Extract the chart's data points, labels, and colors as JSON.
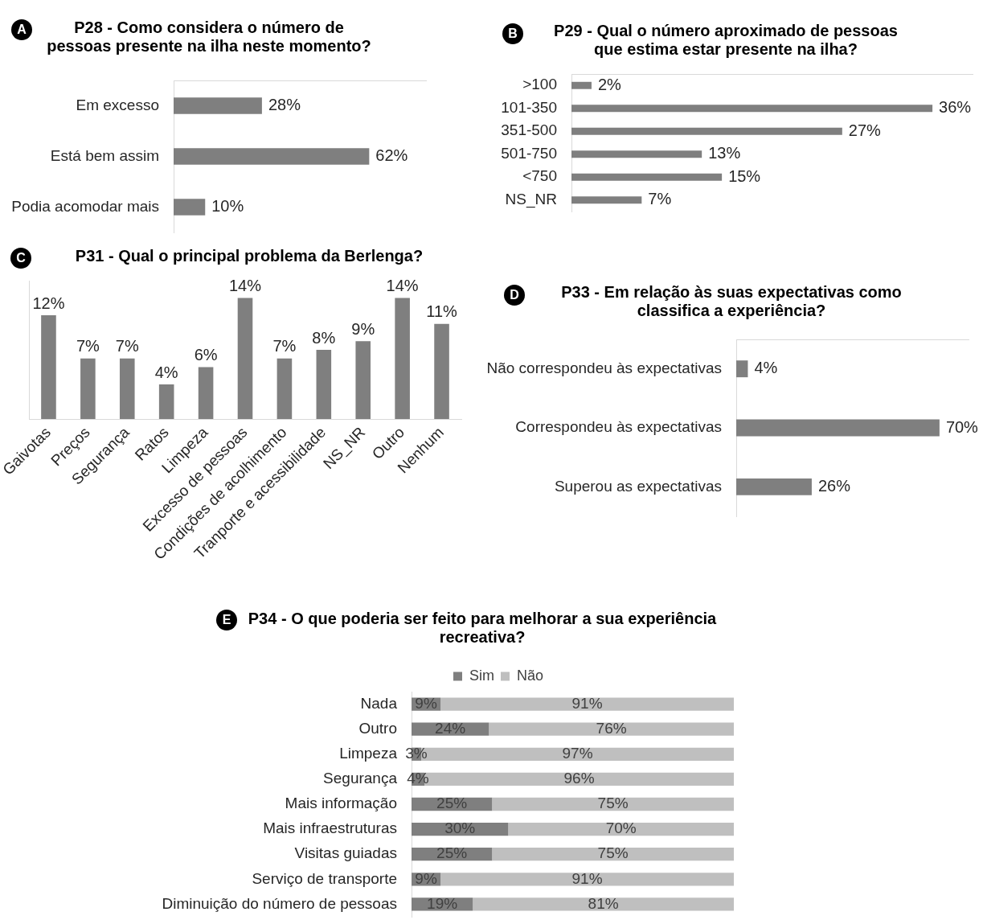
{
  "chart_data": [
    {
      "type": "bar",
      "title": "P28 - Como considera o número de pessoas presente na ilha neste momento?",
      "annotations": [
        "A"
      ],
      "orientation": "horizontal",
      "categories": [
        "Em excesso",
        "Está bem assim",
        "Podia acomodar mais"
      ],
      "values": [
        28,
        62,
        10
      ],
      "value_labels": [
        "28%",
        "62%",
        "10%"
      ],
      "color": "#7f7f7f",
      "xlim": [
        0,
        80
      ],
      "tick_labels": "y"
    },
    {
      "type": "bar",
      "title": "P29 - Qual o número aproximado de pessoas que estima estar presente na ilha?",
      "annotations": [
        "B"
      ],
      "orientation": "horizontal",
      "categories": [
        ">100",
        "101-350",
        "351-500",
        "501-750",
        "<750",
        "NS_NR"
      ],
      "values": [
        2,
        36,
        27,
        13,
        15,
        7
      ],
      "value_labels": [
        "2%",
        "36%",
        "27%",
        "13%",
        "15%",
        "7%"
      ],
      "color": "#7f7f7f",
      "xlim": [
        0,
        40
      ],
      "tick_labels": "y"
    },
    {
      "type": "bar",
      "title": "P31 - Qual o principal problema da Berlenga?",
      "annotations": [
        "C"
      ],
      "categories": [
        "Gaivotas",
        "Preços",
        "Segurança",
        "Ratos",
        "Limpeza",
        "Excesso de pessoas",
        "Condições de acolhimento",
        "Tranporte e acessibilidade",
        "NS_NR",
        "Outro",
        "Nenhum"
      ],
      "values": [
        12,
        7,
        7,
        4,
        6,
        14,
        7,
        8,
        9,
        14,
        11
      ],
      "value_labels": [
        "12%",
        "7%",
        "7%",
        "4%",
        "6%",
        "14%",
        "7%",
        "8%",
        "9%",
        "14%",
        "11%"
      ],
      "color": "#7f7f7f",
      "ylim": [
        0,
        16
      ],
      "tick_labels": "x"
    },
    {
      "type": "bar",
      "title": "P33 - Em relação às suas expectativas como classifica a experiência?",
      "annotations": [
        "D"
      ],
      "orientation": "horizontal",
      "categories": [
        "Não correspondeu às expectativas",
        "Correspondeu às expectativas",
        "Superou as expectativas"
      ],
      "values": [
        4,
        70,
        26
      ],
      "value_labels": [
        "4%",
        "70%",
        "26%"
      ],
      "color": "#7f7f7f",
      "xlim": [
        0,
        80
      ],
      "tick_labels": "y"
    },
    {
      "type": "bar",
      "title": "P34 - O que poderia ser feito para melhorar a sua experiência recreativa?",
      "annotations": [
        "E"
      ],
      "orientation": "horizontal",
      "stacked": true,
      "legend": "top",
      "categories": [
        "Nada",
        "Outro",
        "Limpeza",
        "Segurança",
        "Mais informação",
        "Mais infraestruturas",
        "Visitas guiadas",
        "Serviço de transporte",
        "Diminuição do número de pessoas"
      ],
      "series": [
        {
          "name": "Sim",
          "color": "#7f7f7f",
          "values": [
            9,
            24,
            3,
            4,
            25,
            30,
            25,
            9,
            19
          ],
          "value_labels": [
            "9%",
            "24%",
            "3%",
            "4%",
            "25%",
            "30%",
            "25%",
            "9%",
            "19%"
          ]
        },
        {
          "name": "Não",
          "color": "#bfbfbf",
          "values": [
            91,
            76,
            97,
            96,
            75,
            70,
            75,
            91,
            81
          ],
          "value_labels": [
            "91%",
            "76%",
            "97%",
            "96%",
            "75%",
            "70%",
            "75%",
            "91%",
            "81%"
          ]
        }
      ],
      "xlim": [
        0,
        100
      ],
      "tick_labels": "y"
    }
  ]
}
